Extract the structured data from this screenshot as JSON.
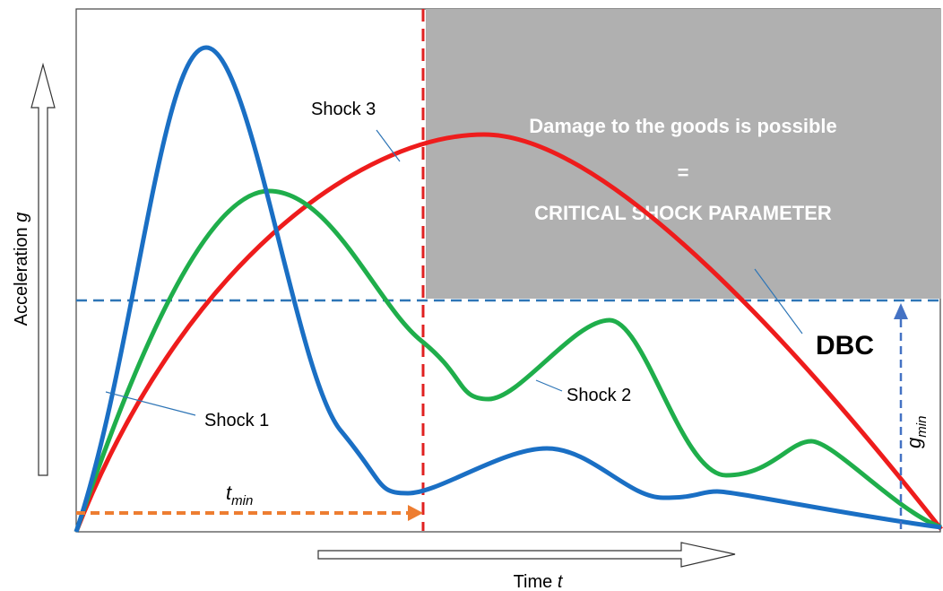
{
  "axes": {
    "y_label": "Acceleration",
    "y_symbol": "g",
    "x_label": "Time",
    "x_symbol": "t"
  },
  "curves": {
    "shock_1": "Shock 1",
    "shock_2": "Shock 2",
    "shock_3": "Shock 3"
  },
  "critical_zone": {
    "line_1": "Damage to the goods is possible",
    "line_2": "=",
    "line_3": "CRITICAL SHOCK PARAMETER"
  },
  "dbc": "DBC",
  "t_min": {
    "symbol": "t",
    "subscript": "min"
  },
  "g_min": {
    "symbol": "g",
    "subscript": "min"
  }
}
